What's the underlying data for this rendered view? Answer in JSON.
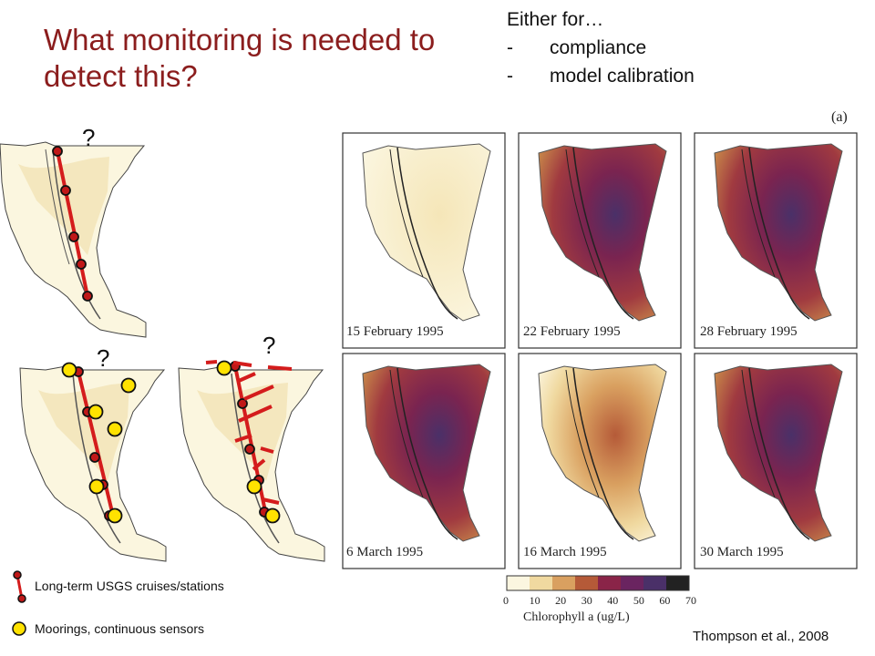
{
  "slide": {
    "title": "What monitoring is needed to detect this?",
    "either_heading": "Either for…",
    "either_items": [
      {
        "dash": "-",
        "text": "compliance"
      },
      {
        "dash": "-",
        "text": "model calibration"
      }
    ],
    "question_marks": [
      "?",
      "?",
      "?"
    ],
    "legend": {
      "cruises_label": "Long-term USGS cruises/stations",
      "moorings_label": "Moorings, continuous sensors"
    },
    "credit": "Thompson et al., 2008"
  },
  "figure": {
    "panel_tag": "(a)",
    "panels": [
      {
        "date": "15 February 1995",
        "bloom": 0.05
      },
      {
        "date": "22 February 1995",
        "bloom": 0.7
      },
      {
        "date": "28 February 1995",
        "bloom": 0.9
      },
      {
        "date": "6 March 1995",
        "bloom": 0.8
      },
      {
        "date": "16 March 1995",
        "bloom": 0.3
      },
      {
        "date": "30 March 1995",
        "bloom": 0.75
      }
    ],
    "colorbar": {
      "title": "Chlorophyll a (ug/L)",
      "ticks": [
        "0",
        "10",
        "20",
        "30",
        "40",
        "50",
        "60",
        "70"
      ],
      "colors": [
        "#fbf6e0",
        "#f0d9a0",
        "#d9a060",
        "#b55a38",
        "#8a2448",
        "#6a2460",
        "#4a3068",
        "#222222"
      ]
    }
  },
  "colors": {
    "title": "#8b1d1d",
    "track": "#d41c1c",
    "station": "#c01818",
    "mooring": "#ffe200"
  }
}
